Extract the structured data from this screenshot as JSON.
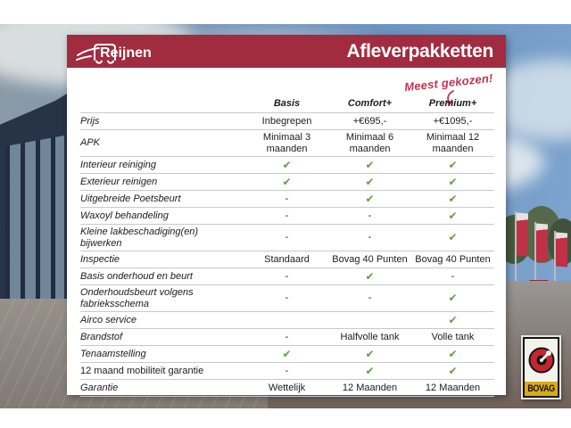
{
  "header": {
    "brand": "Reijnen",
    "title": "Afleverpakketten"
  },
  "annotation": {
    "text": "Meest gekozen!"
  },
  "table": {
    "columns": [
      "Basis",
      "Comfort+",
      "Premium+"
    ],
    "rows": [
      {
        "label": "Prijs",
        "cells": [
          "Inbegrepen",
          "+€695,-",
          "+€1095,-"
        ]
      },
      {
        "label": "APK",
        "cells": [
          "Minimaal 3 maanden",
          "Minimaal 6 maanden",
          "Minimaal 12 maanden"
        ]
      },
      {
        "label": "Interieur reiniging",
        "cells": [
          "check",
          "check",
          "check"
        ]
      },
      {
        "label": "Exterieur reinigen",
        "cells": [
          "check",
          "check",
          "check"
        ]
      },
      {
        "label": "Uitgebreide Poetsbeurt",
        "cells": [
          "-",
          "check",
          "check"
        ]
      },
      {
        "label": "Waxoyl behandeling",
        "cells": [
          "-",
          "-",
          "check"
        ]
      },
      {
        "label": "Kleine lakbeschadiging(en) bijwerken",
        "cells": [
          "-",
          "-",
          "check"
        ]
      },
      {
        "label": "Inspectie",
        "cells": [
          "Standaard",
          "Bovag 40 Punten",
          "Bovag 40 Punten"
        ]
      },
      {
        "label": "Basis onderhoud en beurt",
        "cells": [
          "-",
          "check",
          "-"
        ]
      },
      {
        "label": "Onderhoudsbeurt volgens fabrieksschema",
        "cells": [
          "-",
          "-",
          "check"
        ]
      },
      {
        "label": "Airco service",
        "cells": [
          "",
          "",
          "check"
        ]
      },
      {
        "label": "Brandstof",
        "cells": [
          "-",
          "Halfvolle tank",
          "Volle tank"
        ]
      },
      {
        "label": "Tenaamstelling",
        "cells": [
          "check",
          "check",
          "check"
        ]
      },
      {
        "label": "12 maand mobiliteit garantie",
        "cells": [
          "-",
          "check",
          "check"
        ],
        "label_style": "upright"
      },
      {
        "label": "Garantie",
        "cells": [
          "Wettelijk",
          "12 Maanden",
          "12 Maanden"
        ]
      }
    ]
  },
  "icons": {
    "check_glyph": "✔"
  },
  "badge": {
    "bovag_label": "BOVAG"
  },
  "colors": {
    "accent_red": "#a12c40",
    "annotation_red": "#c2334d",
    "check_green": "#5f9e47",
    "bovag_yellow": "#d9ac14",
    "bovag_disc_red": "#c1272d"
  }
}
